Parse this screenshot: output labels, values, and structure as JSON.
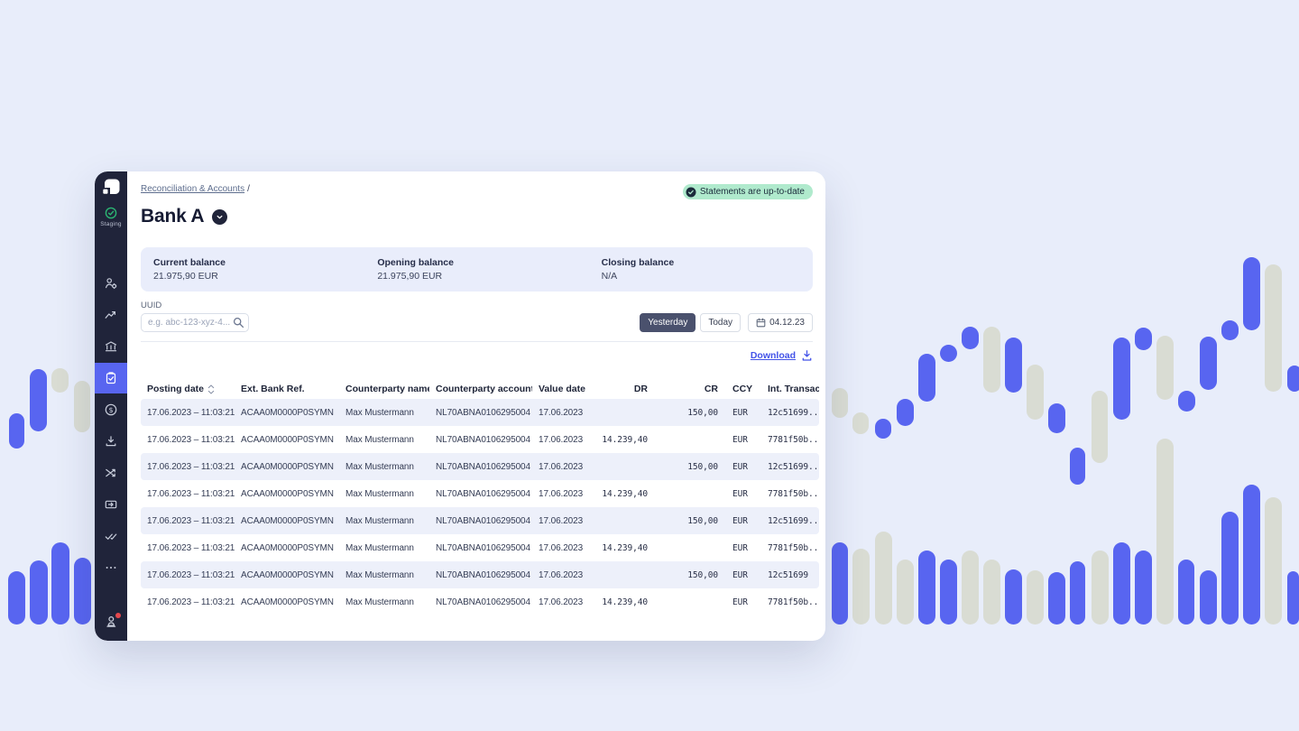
{
  "header": {
    "breadcrumb": {
      "label": "Reconciliation & Accounts",
      "separator": "/"
    },
    "title": "Bank A",
    "status_badge": {
      "label": "Statements are up-to-date"
    }
  },
  "sidebar": {
    "environment_label": "Staging",
    "icons": [
      "user-settings",
      "analytics",
      "bank-accounts",
      "reconciliation",
      "payments",
      "collections",
      "transfers",
      "payouts",
      "approvals",
      "more",
      "profile"
    ],
    "active_icon": "reconciliation"
  },
  "balances": {
    "items": [
      {
        "label": "Current balance",
        "value": "21.975,90 EUR"
      },
      {
        "label": "Opening balance",
        "value": "21.975,90 EUR"
      },
      {
        "label": "Closing balance",
        "value": "N/A"
      }
    ]
  },
  "filters": {
    "uuid_label": "UUID",
    "uuid_placeholder": "e.g. abc-123-xyz-4...",
    "range_buttons": [
      {
        "label": "Yesterday",
        "active": true
      },
      {
        "label": "Today",
        "active": false
      }
    ],
    "date_button": {
      "label": "04.12.23"
    }
  },
  "actions": {
    "download_label": "Download"
  },
  "table": {
    "columns": [
      "Posting date",
      "Ext. Bank Ref.",
      "Counterparty name",
      "Counterparty account",
      "Value date",
      "DR",
      "CR",
      "CCY",
      "Int. Transaction I"
    ],
    "rows": [
      {
        "posting_date": "17.06.2023 – 11:03:21",
        "ext_bank_ref": "ACAA0M0000P0SYMN",
        "counterparty_name": "Max Mustermann",
        "counterparty_account": "NL70ABNA0106295004",
        "value_date": "17.06.2023",
        "dr": "",
        "cr": "150,00",
        "ccy": "EUR",
        "int_transaction_id": "12c51699..."
      },
      {
        "posting_date": "17.06.2023 – 11:03:21",
        "ext_bank_ref": "ACAA0M0000P0SYMN",
        "counterparty_name": "Max Mustermann",
        "counterparty_account": "NL70ABNA0106295004",
        "value_date": "17.06.2023",
        "dr": "14.239,40",
        "cr": "",
        "ccy": "EUR",
        "int_transaction_id": "7781f50b..."
      },
      {
        "posting_date": "17.06.2023 – 11:03:21",
        "ext_bank_ref": "ACAA0M0000P0SYMN",
        "counterparty_name": "Max Mustermann",
        "counterparty_account": "NL70ABNA0106295004",
        "value_date": "17.06.2023",
        "dr": "",
        "cr": "150,00",
        "ccy": "EUR",
        "int_transaction_id": "12c51699..."
      },
      {
        "posting_date": "17.06.2023 – 11:03:21",
        "ext_bank_ref": "ACAA0M0000P0SYMN",
        "counterparty_name": "Max Mustermann",
        "counterparty_account": "NL70ABNA0106295004",
        "value_date": "17.06.2023",
        "dr": "14.239,40",
        "cr": "",
        "ccy": "EUR",
        "int_transaction_id": "7781f50b..."
      },
      {
        "posting_date": "17.06.2023 – 11:03:21",
        "ext_bank_ref": "ACAA0M0000P0SYMN",
        "counterparty_name": "Max Mustermann",
        "counterparty_account": "NL70ABNA0106295004",
        "value_date": "17.06.2023",
        "dr": "",
        "cr": "150,00",
        "ccy": "EUR",
        "int_transaction_id": "12c51699..."
      },
      {
        "posting_date": "17.06.2023 – 11:03:21",
        "ext_bank_ref": "ACAA0M0000P0SYMN",
        "counterparty_name": "Max Mustermann",
        "counterparty_account": "NL70ABNA0106295004",
        "value_date": "17.06.2023",
        "dr": "14.239,40",
        "cr": "",
        "ccy": "EUR",
        "int_transaction_id": "7781f50b..."
      },
      {
        "posting_date": "17.06.2023 – 11:03:21",
        "ext_bank_ref": "ACAA0M0000P0SYMN",
        "counterparty_name": "Max Mustermann",
        "counterparty_account": "NL70ABNA0106295004",
        "value_date": "17.06.2023",
        "dr": "",
        "cr": "150,00",
        "ccy": "EUR",
        "int_transaction_id": "12c51699"
      },
      {
        "posting_date": "17.06.2023 – 11:03:21",
        "ext_bank_ref": "ACAA0M0000P0SYMN",
        "counterparty_name": "Max Mustermann",
        "counterparty_account": "NL70ABNA0106295004",
        "value_date": "17.06.2023",
        "dr": "14.239,40",
        "cr": "",
        "ccy": "EUR",
        "int_transaction_id": "7781f50b..."
      }
    ]
  },
  "colors": {
    "page_bg": "#E8EDFA",
    "accent_blue": "#5865F0",
    "decor_gray": "#D9DCD3",
    "sidebar_bg": "#20243A",
    "active_item_bg": "#5865F0",
    "badge_bg": "#B0EACD",
    "badge_text": "#1B2B3B",
    "staging_green": "#2BB673",
    "link_blue": "#4353E8",
    "alt_row_bg": "#EDF0FA",
    "panel_bg": "#E9EDFB",
    "primary_button_bg": "#4A516D",
    "notification_red": "#E5484D"
  }
}
